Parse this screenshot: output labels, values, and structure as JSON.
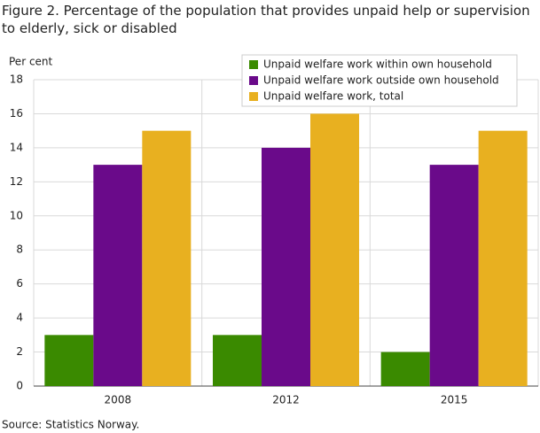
{
  "chart_data": {
    "type": "bar",
    "title": "Figure 2. Percentage of the population that provides unpaid help or supervision to elderly, sick or disabled",
    "y_label": "Per cent",
    "source": "Source: Statistics Norway.",
    "categories": [
      "2008",
      "2012",
      "2015"
    ],
    "series": [
      {
        "name": "Unpaid welfare work within own household",
        "color": "#3a8a00",
        "values": [
          3,
          3,
          2
        ]
      },
      {
        "name": "Unpaid welfare work outside own household",
        "color": "#6a0a8a",
        "values": [
          13,
          14,
          13
        ]
      },
      {
        "name": "Unpaid welfare work, total",
        "color": "#e8b020",
        "values": [
          15,
          16,
          15
        ]
      }
    ],
    "ylim": [
      0,
      18
    ],
    "yticks": [
      0,
      2,
      4,
      6,
      8,
      10,
      12,
      14,
      16,
      18
    ],
    "grid": true,
    "legend": "top-right"
  }
}
